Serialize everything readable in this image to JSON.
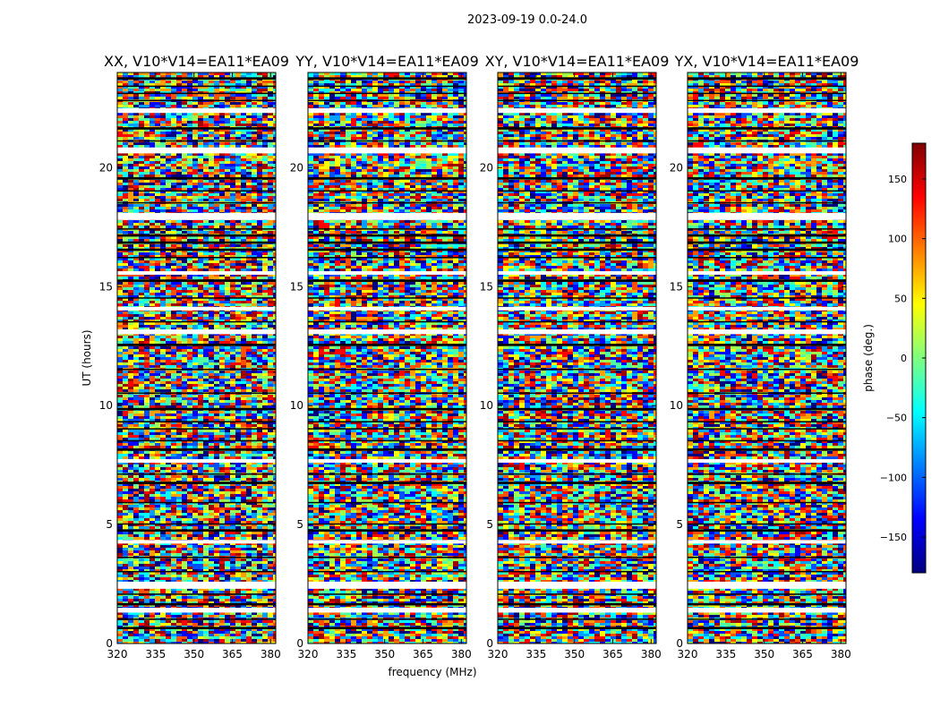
{
  "figure": {
    "suptitle": "2023-09-19 0.0-24.0"
  },
  "chart_data": {
    "type": "heatmap",
    "title": "2023-09-19 0.0-24.0",
    "xlabel": "frequency (MHz)",
    "ylabel": "UT (hours)",
    "xlim": [
      320,
      382
    ],
    "ylim": [
      0,
      24
    ],
    "xticks": [
      320,
      335,
      350,
      365,
      380
    ],
    "yticks": [
      0,
      5,
      10,
      15,
      20
    ],
    "colorbar": {
      "label": "phase (deg.)",
      "range": [
        -180,
        180
      ],
      "ticks": [
        150,
        100,
        50,
        0,
        -50,
        -100,
        -150
      ],
      "tick_labels": [
        "150",
        "100",
        "50",
        "0",
        "−50",
        "−100",
        "−150"
      ],
      "colormap": "jet",
      "colors": [
        "#00007f",
        "#0000ff",
        "#007fff",
        "#00ffff",
        "#7fff7f",
        "#ffff00",
        "#ff7f00",
        "#ff0000",
        "#7f0000"
      ]
    },
    "panels": [
      {
        "name": "XX",
        "title": "XX, V10*V14=EA11*EA09"
      },
      {
        "name": "YY",
        "title": "YY, V10*V14=EA11*EA09"
      },
      {
        "name": "XY",
        "title": "XY, V10*V14=EA11*EA09"
      },
      {
        "name": "YX",
        "title": "YX, V10*V14=EA11*EA09"
      }
    ],
    "blank_time_ranges_hours": [
      [
        1.3,
        1.5
      ],
      [
        2.3,
        2.6
      ],
      [
        4.2,
        4.35
      ],
      [
        7.6,
        7.75
      ],
      [
        13.0,
        13.2
      ],
      [
        14.0,
        14.15
      ],
      [
        15.5,
        15.65
      ],
      [
        17.8,
        18.1
      ],
      [
        20.6,
        20.85
      ],
      [
        22.3,
        22.5
      ]
    ],
    "flagged_time_ranges_hours": [
      [
        0.6,
        0.7
      ],
      [
        1.0,
        1.05
      ],
      [
        1.6,
        1.7
      ],
      [
        2.05,
        2.1
      ],
      [
        3.0,
        3.05
      ],
      [
        3.6,
        3.65
      ],
      [
        4.7,
        4.8
      ],
      [
        5.0,
        5.05
      ],
      [
        5.9,
        5.95
      ],
      [
        6.7,
        6.8
      ],
      [
        7.1,
        7.15
      ],
      [
        8.1,
        8.2
      ],
      [
        8.5,
        8.55
      ],
      [
        9.0,
        9.05
      ],
      [
        9.3,
        9.35
      ],
      [
        9.8,
        9.9
      ],
      [
        10.5,
        10.55
      ],
      [
        11.5,
        11.55
      ],
      [
        12.5,
        12.6
      ],
      [
        13.5,
        13.55
      ],
      [
        14.5,
        14.55
      ],
      [
        15.2,
        15.3
      ],
      [
        16.2,
        16.25
      ],
      [
        16.5,
        16.6
      ],
      [
        16.8,
        16.9
      ],
      [
        17.1,
        17.2
      ],
      [
        17.4,
        17.45
      ],
      [
        18.5,
        18.55
      ],
      [
        19.0,
        19.05
      ],
      [
        19.5,
        19.6
      ],
      [
        21.1,
        21.15
      ],
      [
        21.6,
        21.7
      ],
      [
        22.8,
        22.85
      ],
      [
        23.1,
        23.15
      ],
      [
        23.4,
        23.45
      ],
      [
        23.7,
        23.8
      ]
    ]
  }
}
